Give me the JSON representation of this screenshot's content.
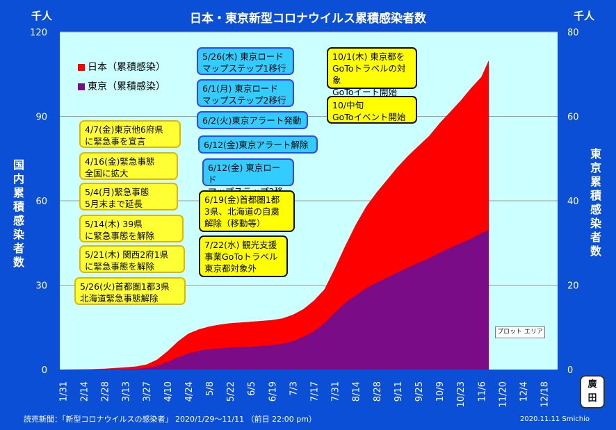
{
  "title": "日本・東京新型コロナウイルス累積感染者数",
  "unit_left": "千人",
  "unit_right": "千人",
  "ylabel_left": "国内累積感染者数",
  "ylabel_right": "東京累積感染者数",
  "plot_area_label": "プロット エリア",
  "source": "読売新聞：「新型コロナウイルスの感染者」 2020/1/29〜11/11 （前日 22:00 pm）",
  "credit": "2020.11.11  Smichio",
  "seal_text": "廣田",
  "colors": {
    "japan": "#ff0000",
    "tokyo": "#7b0c88",
    "plot_bg": "#ccffff",
    "frame": "#0a4fd6"
  },
  "legend": [
    {
      "label": "日本（累積感染）",
      "color": "#ff0000"
    },
    {
      "label": "東京（累積感染）",
      "color": "#7b0c88"
    }
  ],
  "annotations_left": [
    {
      "text": "4/7(金)東京他6府県\nに緊急事を宣言"
    },
    {
      "text": "4/16(金)緊急事態\n全国に拡大"
    },
    {
      "text": "5/4(月)緊急事態\n5月末まで延長"
    },
    {
      "text": "5/14(木) 39県\nに緊急事態を解除"
    },
    {
      "text": "5/21(木) 関西2府1県\nに緊急事態を解除"
    },
    {
      "text": "5/26(火)首都圏1都3県\n北海道緊急事態解除"
    }
  ],
  "annotations_mid": [
    {
      "text": "5/26(木) 東京ロード\nマップステップ1移行"
    },
    {
      "text": "6/1(月) 東京ロード\nマップステップ2移行"
    },
    {
      "text": "6/2(火)東京アラート発動"
    },
    {
      "text": "6/12(金)東京アラート解除"
    },
    {
      "text": "6/12(金) 東京ロード\nマップステップ3移行"
    },
    {
      "text": "6/19(金)首都圏1都\n3県、北海道の自粛\n解除（移動等）"
    },
    {
      "text": "7/22(水) 観光支援\n事業GoToトラベル\n東京都対象外"
    }
  ],
  "annotations_right": [
    {
      "text": "10/1(木) 東京都を\nGoToトラベルの対象\nGoToイート開始"
    },
    {
      "text": "10/中旬\nGoToイベント開始"
    }
  ],
  "chart_data": {
    "type": "area",
    "title": "日本・東京新型コロナウイルス累積感染者数",
    "x_tick_labels": [
      "1/31",
      "2/14",
      "2/28",
      "3/13",
      "3/27",
      "4/10",
      "4/24",
      "5/8",
      "5/22",
      "6/5",
      "6/19",
      "7/3",
      "7/17",
      "7/31",
      "8/14",
      "8/28",
      "9/11",
      "9/25",
      "10/9",
      "10/23",
      "11/6",
      "11/20",
      "12/4",
      "12/18"
    ],
    "ylim_left": [
      0,
      120
    ],
    "ylim_right": [
      0,
      80
    ],
    "yticks_left": [
      0,
      30,
      60,
      90,
      120
    ],
    "yticks_right": [
      0,
      20,
      40,
      60,
      80
    ],
    "grid": true,
    "legend_position": "top-left",
    "dates": [
      "1/29",
      "2/14",
      "2/28",
      "3/13",
      "3/20",
      "3/27",
      "4/3",
      "4/10",
      "4/17",
      "4/24",
      "5/1",
      "5/8",
      "5/15",
      "5/22",
      "6/5",
      "6/19",
      "6/26",
      "7/3",
      "7/10",
      "7/17",
      "7/24",
      "7/31",
      "8/7",
      "8/14",
      "8/21",
      "8/28",
      "9/4",
      "9/11",
      "9/18",
      "9/25",
      "10/2",
      "10/9",
      "10/16",
      "10/23",
      "10/30",
      "11/6",
      "11/11"
    ],
    "series": [
      {
        "name": "日本（累積感染）",
        "axis": "left",
        "values": [
          0,
          0.05,
          0.3,
          0.8,
          1.1,
          1.8,
          3.5,
          6.5,
          10.0,
          12.8,
          14.3,
          15.3,
          16.0,
          16.5,
          17.0,
          17.6,
          18.2,
          19.5,
          21.5,
          24.5,
          28.5,
          36.0,
          44.0,
          51.5,
          58.0,
          63.0,
          67.5,
          72.0,
          76.0,
          79.5,
          83.0,
          87.5,
          91.5,
          95.5,
          100.0,
          104.0,
          110.0
        ]
      },
      {
        "name": "東京（累積感染）",
        "axis": "right",
        "values": [
          0,
          0.03,
          0.05,
          0.1,
          0.15,
          0.4,
          0.9,
          1.8,
          2.9,
          3.8,
          4.4,
          4.8,
          5.0,
          5.2,
          5.4,
          5.8,
          6.1,
          6.7,
          7.8,
          9.0,
          11.0,
          13.5,
          15.8,
          17.6,
          19.3,
          20.6,
          21.8,
          23.0,
          24.2,
          25.3,
          26.4,
          27.6,
          28.8,
          29.9,
          31.0,
          32.3,
          33.0
        ]
      }
    ]
  }
}
